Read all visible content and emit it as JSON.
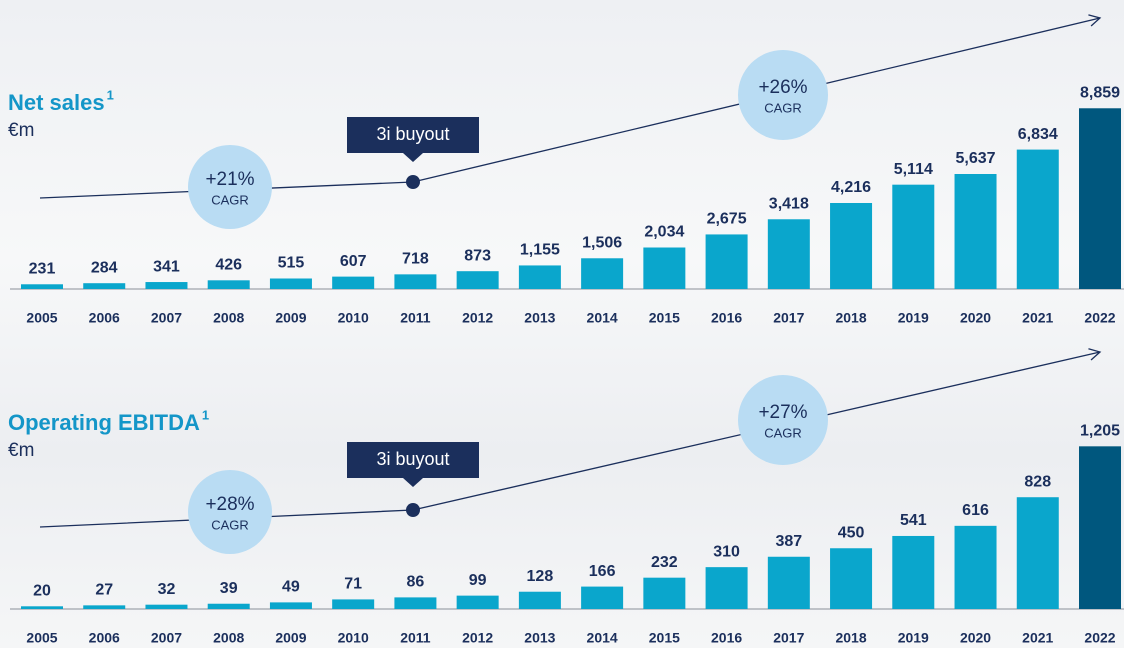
{
  "chart_data": [
    {
      "type": "bar",
      "title": "Net sales",
      "title_superscript": "1",
      "subtitle": "€m",
      "categories": [
        "2005",
        "2006",
        "2007",
        "2008",
        "2009",
        "2010",
        "2011",
        "2012",
        "2013",
        "2014",
        "2015",
        "2016",
        "2017",
        "2018",
        "2019",
        "2020",
        "2021",
        "2022"
      ],
      "values": [
        231,
        284,
        341,
        426,
        515,
        607,
        718,
        873,
        1155,
        1506,
        2034,
        2675,
        3418,
        4216,
        5114,
        5637,
        6834,
        8859
      ],
      "value_labels": [
        "231",
        "284",
        "341",
        "426",
        "515",
        "607",
        "718",
        "873",
        "1,155",
        "1,506",
        "2,034",
        "2,675",
        "3,418",
        "4,216",
        "5,114",
        "5,637",
        "6,834",
        "8,859"
      ],
      "colors": [
        "#0aa6cc",
        "#0aa6cc",
        "#0aa6cc",
        "#0aa6cc",
        "#0aa6cc",
        "#0aa6cc",
        "#0aa6cc",
        "#0aa6cc",
        "#0aa6cc",
        "#0aa6cc",
        "#0aa6cc",
        "#0aa6cc",
        "#0aa6cc",
        "#0aa6cc",
        "#0aa6cc",
        "#0aa6cc",
        "#0aa6cc",
        "#00577e"
      ],
      "ylim": [
        0,
        10000
      ],
      "cagr_left": "+21%",
      "cagr_right": "+26%",
      "cagr_label": "CAGR",
      "event": "3i buyout"
    },
    {
      "type": "bar",
      "title": "Operating EBITDA",
      "title_superscript": "1",
      "subtitle": "€m",
      "categories": [
        "2005",
        "2006",
        "2007",
        "2008",
        "2009",
        "2010",
        "2011",
        "2012",
        "2013",
        "2014",
        "2015",
        "2016",
        "2017",
        "2018",
        "2019",
        "2020",
        "2021",
        "2022"
      ],
      "values": [
        20,
        27,
        32,
        39,
        49,
        71,
        86,
        99,
        128,
        166,
        232,
        310,
        387,
        450,
        541,
        616,
        828,
        1205
      ],
      "value_labels": [
        "20",
        "27",
        "32",
        "39",
        "49",
        "71",
        "86",
        "99",
        "128",
        "166",
        "232",
        "310",
        "387",
        "450",
        "541",
        "616",
        "828",
        "1,205"
      ],
      "colors": [
        "#0aa6cc",
        "#0aa6cc",
        "#0aa6cc",
        "#0aa6cc",
        "#0aa6cc",
        "#0aa6cc",
        "#0aa6cc",
        "#0aa6cc",
        "#0aa6cc",
        "#0aa6cc",
        "#0aa6cc",
        "#0aa6cc",
        "#0aa6cc",
        "#0aa6cc",
        "#0aa6cc",
        "#0aa6cc",
        "#0aa6cc",
        "#00577e"
      ],
      "ylim": [
        0,
        1400
      ],
      "cagr_left": "+28%",
      "cagr_right": "+27%",
      "cagr_label": "CAGR",
      "event": "3i buyout"
    }
  ]
}
